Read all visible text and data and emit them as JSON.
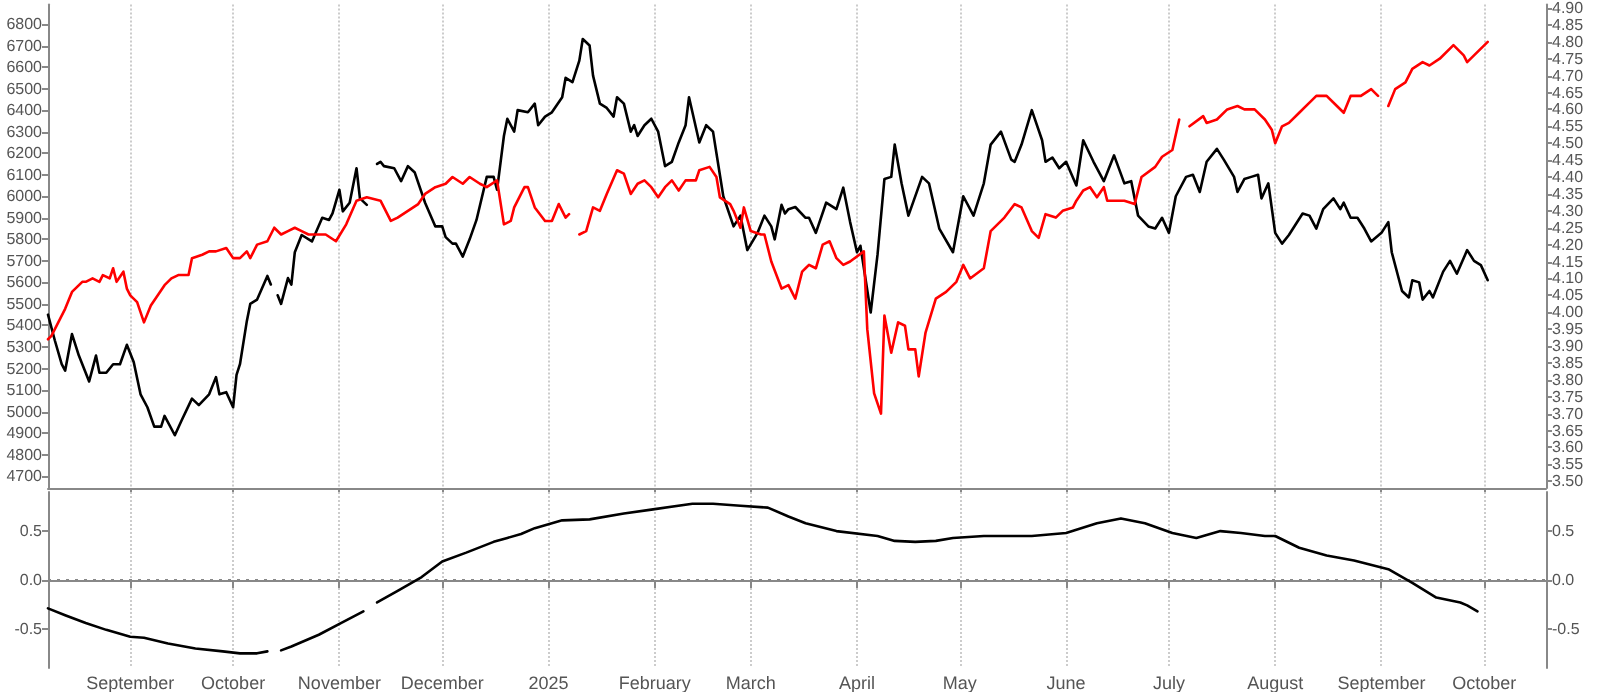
{
  "chart_data": [
    {
      "type": "line",
      "grid": "x",
      "marker": "none",
      "line_style": "solid",
      "tick_labels": "y",
      "xlim": [
        "2024-08-08",
        "2025-10-19"
      ],
      "xticks": [
        {
          "value": "2024-09-01",
          "label": null
        },
        {
          "value": "2024-10-01",
          "label": null
        },
        {
          "value": "2024-11-01",
          "label": null
        },
        {
          "value": "2024-12-01",
          "label": null
        },
        {
          "value": "2025-01-01",
          "label": null
        },
        {
          "value": "2025-02-01",
          "label": null
        },
        {
          "value": "2025-03-01",
          "label": null
        },
        {
          "value": "2025-04-01",
          "label": null
        },
        {
          "value": "2025-05-01",
          "label": null
        },
        {
          "value": "2025-06-01",
          "label": null
        },
        {
          "value": "2025-07-01",
          "label": null
        },
        {
          "value": "2025-08-01",
          "label": null
        },
        {
          "value": "2025-09-01",
          "label": null
        },
        {
          "value": "2025-10-01",
          "label": null
        }
      ],
      "ylim": [
        4645,
        6890
      ],
      "yticks": [
        4700,
        4800,
        4900,
        5000,
        5100,
        5200,
        5300,
        5400,
        5500,
        5600,
        5700,
        5800,
        5900,
        6000,
        6100,
        6200,
        6300,
        6400,
        6500,
        6600,
        6700,
        6800
      ],
      "y2lim": [
        3.48,
        4.91
      ],
      "y2ticks": [
        {
          "value": 3.5,
          "label": "3.50"
        },
        {
          "value": 3.55,
          "label": "3.55"
        },
        {
          "value": 3.6,
          "label": "3.60"
        },
        {
          "value": 3.65,
          "label": "3.65"
        },
        {
          "value": 3.7,
          "label": "3.70"
        },
        {
          "value": 3.75,
          "label": "3.75"
        },
        {
          "value": 3.8,
          "label": "3.80"
        },
        {
          "value": 3.85,
          "label": "3.85"
        },
        {
          "value": 3.9,
          "label": "3.90"
        },
        {
          "value": 3.95,
          "label": "3.95"
        },
        {
          "value": 4.0,
          "label": "4.00"
        },
        {
          "value": 4.05,
          "label": "4.05"
        },
        {
          "value": 4.1,
          "label": "4.10"
        },
        {
          "value": 4.15,
          "label": "4.15"
        },
        {
          "value": 4.2,
          "label": "4.20"
        },
        {
          "value": 4.25,
          "label": "4.25"
        },
        {
          "value": 4.3,
          "label": "4.30"
        },
        {
          "value": 4.35,
          "label": "4.35"
        },
        {
          "value": 4.4,
          "label": "4.40"
        },
        {
          "value": 4.45,
          "label": "4.45"
        },
        {
          "value": 4.5,
          "label": "4.50"
        },
        {
          "value": 4.55,
          "label": "4.55"
        },
        {
          "value": 4.6,
          "label": "4.60"
        },
        {
          "value": 4.65,
          "label": "4.65"
        },
        {
          "value": 4.7,
          "label": "4.70"
        },
        {
          "value": 4.75,
          "label": "4.75"
        },
        {
          "value": 4.8,
          "label": "4.80"
        },
        {
          "value": 4.85,
          "label": "4.85"
        },
        {
          "value": 4.9,
          "label": "4.90"
        }
      ],
      "series": [
        {
          "color": "#000000",
          "x": [
            "2024-08-08",
            "2024-08-10",
            "2024-08-12",
            "2024-08-13",
            "2024-08-15",
            "2024-08-17",
            "2024-08-20",
            "2024-08-22",
            "2024-08-23",
            "2024-08-25",
            "2024-08-27",
            "2024-08-29",
            "2024-08-31",
            "2024-09-02",
            "2024-09-04",
            "2024-09-06",
            "2024-09-08",
            "2024-09-10",
            "2024-09-11",
            "2024-09-14",
            "2024-09-16",
            "2024-09-19",
            "2024-09-21",
            "2024-09-24",
            "2024-09-26",
            "2024-09-27",
            "2024-09-29",
            "2024-10-01",
            "2024-10-02",
            "2024-10-03",
            "2024-10-05",
            "2024-10-06",
            "2024-10-08",
            "2024-10-11",
            "2024-10-12",
            "2024-10-13",
            "2024-10-14",
            "2024-10-15",
            "2024-10-17",
            "2024-10-18",
            "2024-10-19",
            "2024-10-21",
            "2024-10-24",
            "2024-10-27",
            "2024-10-29",
            "2024-10-30",
            "2024-11-01",
            "2024-11-02",
            "2024-11-04",
            "2024-11-06",
            "2024-11-07",
            "2024-11-09",
            "2024-11-10",
            "2024-11-12",
            "2024-11-13",
            "2024-11-14",
            "2024-11-17",
            "2024-11-19",
            "2024-11-21",
            "2024-11-23",
            "2024-11-26",
            "2024-11-29",
            "2024-12-01",
            "2024-12-02",
            "2024-12-04",
            "2024-12-05",
            "2024-12-07",
            "2024-12-09",
            "2024-12-11",
            "2024-12-14",
            "2024-12-16",
            "2024-12-17",
            "2024-12-19",
            "2024-12-20",
            "2024-12-22",
            "2024-12-23",
            "2024-12-26",
            "2024-12-28",
            "2024-12-29",
            "2024-12-31",
            "2025-01-02",
            "2025-01-05",
            "2025-01-06",
            "2025-01-08",
            "2025-01-10",
            "2025-01-11",
            "2025-01-13",
            "2025-01-14",
            "2025-01-16",
            "2025-01-18",
            "2025-01-20",
            "2025-01-21",
            "2025-01-23",
            "2025-01-25",
            "2025-01-26",
            "2025-01-27",
            "2025-01-29",
            "2025-01-31",
            "2025-02-02",
            "2025-02-04",
            "2025-02-06",
            "2025-02-08",
            "2025-02-10",
            "2025-02-11",
            "2025-02-14",
            "2025-02-16",
            "2025-02-18",
            "2025-02-19",
            "2025-02-21",
            "2025-02-24",
            "2025-02-26",
            "2025-02-28",
            "2025-03-03",
            "2025-03-05",
            "2025-03-07",
            "2025-03-08",
            "2025-03-10",
            "2025-03-11",
            "2025-03-12",
            "2025-03-14",
            "2025-03-17",
            "2025-03-18",
            "2025-03-20",
            "2025-03-23",
            "2025-03-26",
            "2025-03-28",
            "2025-03-30",
            "2025-04-01",
            "2025-04-02",
            "2025-04-05",
            "2025-04-07",
            "2025-04-09",
            "2025-04-11",
            "2025-04-12",
            "2025-04-14",
            "2025-04-16",
            "2025-04-20",
            "2025-04-22",
            "2025-04-25",
            "2025-04-29",
            "2025-05-02",
            "2025-05-05",
            "2025-05-08",
            "2025-05-10",
            "2025-05-13",
            "2025-05-16",
            "2025-05-17",
            "2025-05-19",
            "2025-05-22",
            "2025-05-25",
            "2025-05-26",
            "2025-05-28",
            "2025-05-30",
            "2025-06-01",
            "2025-06-04",
            "2025-06-06",
            "2025-06-09",
            "2025-06-12",
            "2025-06-15",
            "2025-06-18",
            "2025-06-20",
            "2025-06-22",
            "2025-06-25",
            "2025-06-27",
            "2025-06-29",
            "2025-07-01",
            "2025-07-03",
            "2025-07-06",
            "2025-07-08",
            "2025-07-10",
            "2025-07-12",
            "2025-07-15",
            "2025-07-17",
            "2025-07-20",
            "2025-07-21",
            "2025-07-23",
            "2025-07-25",
            "2025-07-27",
            "2025-07-28",
            "2025-07-30",
            "2025-08-01",
            "2025-08-03",
            "2025-08-05",
            "2025-08-09",
            "2025-08-11",
            "2025-08-13",
            "2025-08-15",
            "2025-08-18",
            "2025-08-20",
            "2025-08-21",
            "2025-08-23",
            "2025-08-25",
            "2025-08-27",
            "2025-08-29",
            "2025-09-01",
            "2025-09-03",
            "2025-09-04",
            "2025-09-07",
            "2025-09-09",
            "2025-09-10",
            "2025-09-12",
            "2025-09-13",
            "2025-09-15",
            "2025-09-16",
            "2025-09-19",
            "2025-09-21",
            "2025-09-23",
            "2025-09-26",
            "2025-09-28",
            "2025-09-30",
            "2025-10-02"
          ],
          "values": [
            5450,
            5330,
            5220,
            5190,
            5360,
            5260,
            5140,
            5260,
            5180,
            5180,
            5220,
            5220,
            5310,
            5230,
            5080,
            5020,
            4930,
            4930,
            4980,
            4890,
            4960,
            5060,
            5030,
            5080,
            5160,
            5080,
            5090,
            5020,
            5170,
            5220,
            5420,
            5500,
            5520,
            5630,
            5590,
            null,
            5540,
            5500,
            5620,
            5590,
            5740,
            5820,
            5790,
            5900,
            5890,
            5920,
            6030,
            5930,
            5970,
            6130,
            5990,
            5960,
            null,
            6150,
            6160,
            6140,
            6130,
            6070,
            6140,
            6110,
            5970,
            5860,
            5860,
            5810,
            5780,
            5780,
            5720,
            5800,
            5890,
            6090,
            6090,
            6030,
            6280,
            6360,
            6300,
            6400,
            6390,
            6430,
            6330,
            6370,
            6390,
            6460,
            6550,
            6530,
            6630,
            6730,
            6700,
            6560,
            6430,
            6410,
            6370,
            6460,
            6430,
            6300,
            6330,
            6280,
            6330,
            6360,
            6300,
            6140,
            6160,
            6250,
            6330,
            6460,
            6250,
            6330,
            6300,
            6200,
            6000,
            5860,
            5910,
            5750,
            5830,
            5910,
            5860,
            5800,
            5960,
            5920,
            5940,
            5950,
            5900,
            5900,
            5830,
            5970,
            5940,
            6040,
            5880,
            5740,
            5770,
            5460,
            5730,
            6080,
            6090,
            6240,
            6060,
            5910,
            6090,
            6060,
            5850,
            5740,
            6000,
            5910,
            6060,
            6240,
            6300,
            6170,
            6160,
            6240,
            6400,
            6260,
            6160,
            6180,
            6130,
            6160,
            6050,
            6260,
            6160,
            6070,
            6190,
            6060,
            6070,
            5910,
            5860,
            5850,
            5900,
            5830,
            6000,
            6090,
            6100,
            6020,
            6160,
            6220,
            6170,
            6090,
            6020,
            6080,
            6090,
            6100,
            5990,
            6060,
            5830,
            5780,
            5820,
            5920,
            5910,
            5850,
            5940,
            5990,
            5940,
            5970,
            5900,
            5900,
            5850,
            5790,
            5830,
            5880,
            5740,
            5560,
            5530,
            5610,
            5600,
            5520,
            5560,
            5530,
            5650,
            5700,
            5640,
            5750,
            5700,
            5680,
            5610
          ]
        },
        {
          "color": "#ff0000",
          "axis": "y2",
          "x": [
            "2024-08-08",
            "2024-08-09",
            "2024-08-11",
            "2024-08-13",
            "2024-08-15",
            "2024-08-18",
            "2024-08-19",
            "2024-08-21",
            "2024-08-23",
            "2024-08-24",
            "2024-08-26",
            "2024-08-27",
            "2024-08-28",
            "2024-08-30",
            "2024-08-31",
            "2024-09-01",
            "2024-09-03",
            "2024-09-05",
            "2024-09-07",
            "2024-09-11",
            "2024-09-13",
            "2024-09-15",
            "2024-09-18",
            "2024-09-19",
            "2024-09-22",
            "2024-09-24",
            "2024-09-26",
            "2024-09-29",
            "2024-10-01",
            "2024-10-03",
            "2024-10-05",
            "2024-10-06",
            "2024-10-08",
            "2024-10-11",
            "2024-10-13",
            "2024-10-15",
            "2024-10-17",
            "2024-10-19",
            "2024-10-21",
            "2024-10-23",
            "2024-10-25",
            "2024-10-28",
            "2024-10-31",
            "2024-11-03",
            "2024-11-06",
            "2024-11-09",
            "2024-11-13",
            "2024-11-16",
            "2024-11-18",
            "2024-11-21",
            "2024-11-24",
            "2024-11-26",
            "2024-11-29",
            "2024-12-02",
            "2024-12-04",
            "2024-12-07",
            "2024-12-09",
            "2024-12-12",
            "2024-12-14",
            "2024-12-17",
            "2024-12-19",
            "2024-12-21",
            "2024-12-22",
            "2024-12-25",
            "2024-12-26",
            "2024-12-28",
            "2024-12-31",
            "2025-01-02",
            "2025-01-04",
            "2025-01-06",
            "2025-01-07",
            "2025-01-09",
            "2025-01-10",
            "2025-01-12",
            "2025-01-14",
            "2025-01-16",
            "2025-01-18",
            "2025-01-21",
            "2025-01-23",
            "2025-01-25",
            "2025-01-27",
            "2025-01-29",
            "2025-01-31",
            "2025-02-02",
            "2025-02-04",
            "2025-02-06",
            "2025-02-08",
            "2025-02-10",
            "2025-02-13",
            "2025-02-14",
            "2025-02-17",
            "2025-02-19",
            "2025-02-20",
            "2025-02-23",
            "2025-02-24",
            "2025-02-26",
            "2025-02-27",
            "2025-03-01",
            "2025-03-04",
            "2025-03-05",
            "2025-03-07",
            "2025-03-10",
            "2025-03-12",
            "2025-03-14",
            "2025-03-16",
            "2025-03-17",
            "2025-03-18",
            "2025-03-20",
            "2025-03-22",
            "2025-03-24",
            "2025-03-26",
            "2025-03-28",
            "2025-03-30",
            "2025-04-03",
            "2025-04-04",
            "2025-04-06",
            "2025-04-08",
            "2025-04-09",
            "2025-04-11",
            "2025-04-13",
            "2025-04-15",
            "2025-04-16",
            "2025-04-18",
            "2025-04-19",
            "2025-04-21",
            "2025-04-24",
            "2025-04-27",
            "2025-04-30",
            "2025-05-02",
            "2025-05-04",
            "2025-05-08",
            "2025-05-10",
            "2025-05-14",
            "2025-05-17",
            "2025-05-19",
            "2025-05-22",
            "2025-05-24",
            "2025-05-26",
            "2025-05-29",
            "2025-05-31",
            "2025-06-03",
            "2025-06-04",
            "2025-06-06",
            "2025-06-08",
            "2025-06-10",
            "2025-06-12",
            "2025-06-13",
            "2025-06-16",
            "2025-06-18",
            "2025-06-21",
            "2025-06-23",
            "2025-06-27",
            "2025-06-29",
            "2025-07-02",
            "2025-07-04",
            "2025-07-05",
            "2025-07-07",
            "2025-07-11",
            "2025-07-12",
            "2025-07-15",
            "2025-07-18",
            "2025-07-21",
            "2025-07-23",
            "2025-07-26",
            "2025-07-29",
            "2025-07-31",
            "2025-08-01",
            "2025-08-03",
            "2025-08-05",
            "2025-08-08",
            "2025-08-11",
            "2025-08-13",
            "2025-08-16",
            "2025-08-19",
            "2025-08-21",
            "2025-08-23",
            "2025-08-26",
            "2025-08-29",
            "2025-08-31",
            "2025-09-01",
            "2025-09-03",
            "2025-09-05",
            "2025-09-08",
            "2025-09-10",
            "2025-09-13",
            "2025-09-15",
            "2025-09-18",
            "2025-09-22",
            "2025-09-25",
            "2025-09-26",
            "2025-09-28",
            "2025-10-02"
          ],
          "values": [
            3.92,
            3.93,
            3.97,
            4.01,
            4.06,
            4.09,
            4.09,
            4.1,
            4.09,
            4.11,
            4.1,
            4.13,
            4.09,
            4.12,
            4.07,
            4.05,
            4.03,
            3.97,
            4.02,
            4.08,
            4.1,
            4.11,
            4.11,
            4.16,
            4.17,
            4.18,
            4.18,
            4.19,
            4.16,
            4.16,
            4.18,
            4.16,
            4.2,
            4.21,
            4.25,
            4.23,
            4.24,
            4.25,
            4.24,
            4.23,
            4.23,
            4.23,
            4.21,
            4.26,
            4.33,
            4.34,
            4.33,
            4.27,
            4.28,
            4.3,
            4.32,
            4.35,
            4.37,
            4.38,
            4.4,
            4.38,
            4.4,
            4.38,
            4.37,
            4.39,
            4.26,
            4.27,
            4.31,
            4.37,
            4.37,
            4.31,
            4.27,
            4.27,
            4.32,
            4.28,
            4.29,
            null,
            4.23,
            4.24,
            4.31,
            4.3,
            4.35,
            4.42,
            4.41,
            4.35,
            4.38,
            4.39,
            4.37,
            4.34,
            4.37,
            4.39,
            4.36,
            4.39,
            4.39,
            4.42,
            4.43,
            4.4,
            4.34,
            4.32,
            4.3,
            4.25,
            4.31,
            4.24,
            4.23,
            4.23,
            4.15,
            4.07,
            4.08,
            4.04,
            4.12,
            4.13,
            4.14,
            4.13,
            4.2,
            4.21,
            4.16,
            4.14,
            4.15,
            4.18,
            3.95,
            3.76,
            3.7,
            3.99,
            3.88,
            3.97,
            3.96,
            3.89,
            3.89,
            3.81,
            3.94,
            4.04,
            4.06,
            4.09,
            4.14,
            4.1,
            4.13,
            4.24,
            4.28,
            4.32,
            4.31,
            4.24,
            4.22,
            4.29,
            4.28,
            4.3,
            4.31,
            4.33,
            4.36,
            4.37,
            4.34,
            4.37,
            4.33,
            4.33,
            4.33,
            4.32,
            4.4,
            4.43,
            4.46,
            4.48,
            4.57,
            null,
            4.55,
            4.58,
            4.56,
            4.57,
            4.6,
            4.61,
            4.6,
            4.6,
            4.57,
            4.54,
            4.5,
            4.55,
            4.56,
            4.59,
            4.62,
            4.64,
            4.64,
            4.61,
            4.59,
            4.64,
            4.64,
            4.66,
            4.64,
            null,
            4.61,
            4.66,
            4.68,
            4.72,
            4.74,
            4.73,
            4.75,
            4.79,
            4.76,
            4.74,
            4.76,
            4.8
          ]
        }
      ]
    },
    {
      "type": "line",
      "grid": "x",
      "marker": "none",
      "line_style": "solid",
      "xlim": [
        "2024-08-08",
        "2025-10-19"
      ],
      "xticks": [
        {
          "value": "2024-09-01",
          "label": "September"
        },
        {
          "value": "2024-10-01",
          "label": "October"
        },
        {
          "value": "2024-11-01",
          "label": "November"
        },
        {
          "value": "2024-12-01",
          "label": "December"
        },
        {
          "value": "2025-01-01",
          "label": "2025"
        },
        {
          "value": "2025-02-01",
          "label": "February"
        },
        {
          "value": "2025-03-01",
          "label": "March"
        },
        {
          "value": "2025-04-01",
          "label": "April"
        },
        {
          "value": "2025-05-01",
          "label": "May"
        },
        {
          "value": "2025-06-01",
          "label": "June"
        },
        {
          "value": "2025-07-01",
          "label": "July"
        },
        {
          "value": "2025-08-01",
          "label": "August"
        },
        {
          "value": "2025-09-01",
          "label": "September"
        },
        {
          "value": "2025-10-01",
          "label": "October"
        }
      ],
      "ylim": [
        -0.9,
        0.9
      ],
      "yticks": [
        {
          "value": -0.5,
          "label": "-0.5"
        },
        {
          "value": 0,
          "label": "0.0"
        },
        {
          "value": 0.5,
          "label": "0.5"
        }
      ],
      "y2lim": [
        -0.9,
        0.9
      ],
      "y2ticks": [
        {
          "value": -0.5,
          "label": "-0.5"
        },
        {
          "value": 0,
          "label": "0.0"
        },
        {
          "value": 0.5,
          "label": "0.5"
        }
      ],
      "ref_lines": [
        {
          "axis": "y",
          "value": 0,
          "color": "#888888",
          "line_style": "dotted"
        }
      ],
      "series": [
        {
          "color": "#000000",
          "x": [
            "2024-08-08",
            "2024-08-13",
            "2024-08-19",
            "2024-08-25",
            "2024-09-01",
            "2024-09-05",
            "2024-09-12",
            "2024-09-20",
            "2024-09-28",
            "2024-10-03",
            "2024-10-08",
            "2024-10-11",
            "2024-10-13",
            "2024-10-15",
            "2024-10-18",
            "2024-10-26",
            "2024-11-02",
            "2024-11-08",
            "2024-11-10",
            "2024-11-12",
            "2024-11-18",
            "2024-11-25",
            "2024-12-01",
            "2024-12-08",
            "2024-12-16",
            "2024-12-20",
            "2024-12-24",
            "2024-12-28",
            "2025-01-05",
            "2025-01-13",
            "2025-01-23",
            "2025-01-31",
            "2025-02-12",
            "2025-02-18",
            "2025-02-26",
            "2025-03-06",
            "2025-03-12",
            "2025-03-17",
            "2025-03-26",
            "2025-04-07",
            "2025-04-12",
            "2025-04-18",
            "2025-04-24",
            "2025-04-29",
            "2025-05-08",
            "2025-05-22",
            "2025-06-01",
            "2025-06-10",
            "2025-06-17",
            "2025-06-24",
            "2025-07-02",
            "2025-07-09",
            "2025-07-16",
            "2025-07-22",
            "2025-07-29",
            "2025-08-01",
            "2025-08-08",
            "2025-08-16",
            "2025-08-24",
            "2025-09-03",
            "2025-09-10",
            "2025-09-17",
            "2025-09-24",
            "2025-09-26",
            "2025-09-29"
          ],
          "values": [
            -0.29,
            -0.36,
            -0.44,
            -0.51,
            -0.58,
            -0.59,
            -0.65,
            -0.7,
            -0.73,
            -0.75,
            -0.75,
            -0.73,
            null,
            -0.72,
            -0.68,
            -0.56,
            -0.43,
            -0.32,
            null,
            -0.23,
            -0.11,
            0.03,
            0.19,
            0.28,
            0.39,
            0.43,
            0.47,
            0.53,
            0.61,
            0.62,
            0.68,
            0.72,
            0.78,
            0.78,
            0.76,
            0.74,
            0.65,
            0.58,
            0.5,
            0.45,
            0.4,
            0.39,
            0.4,
            0.43,
            0.45,
            0.45,
            0.48,
            0.58,
            0.63,
            0.58,
            0.48,
            0.43,
            0.5,
            0.48,
            0.45,
            0.45,
            0.33,
            0.25,
            0.2,
            0.11,
            -0.03,
            -0.18,
            -0.23,
            -0.26,
            -0.32
          ]
        }
      ]
    }
  ]
}
